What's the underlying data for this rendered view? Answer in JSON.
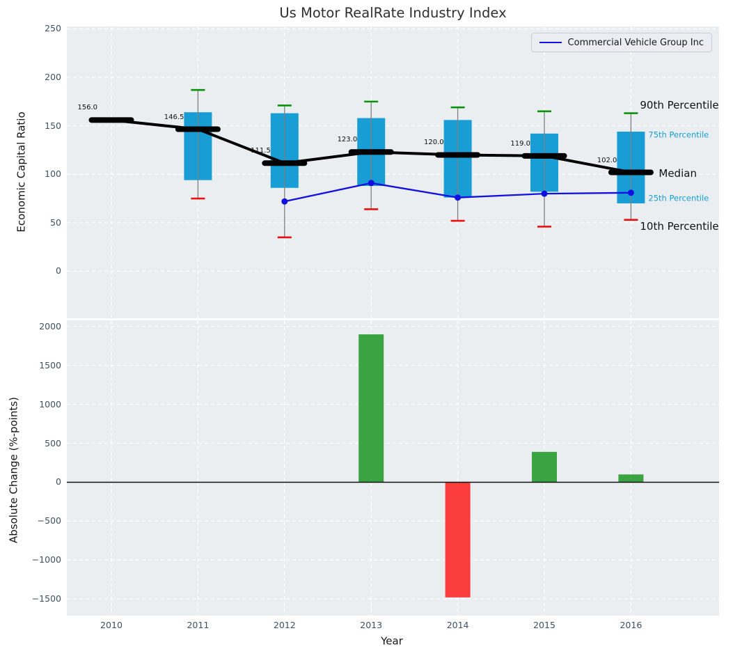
{
  "title": "Us Motor RealRate Industry Index",
  "colors": {
    "panel_bg": "#eaeef0",
    "grid_line": "#ffffff",
    "tick_text": "#3c4f63",
    "box_fill": "#189dd4",
    "whisker": "#808080",
    "cap_high": "#0a930a",
    "cap_low": "#ea1010",
    "median_line": "#000000",
    "company_line": "#1010e0",
    "bar_positive": "#3ba342",
    "bar_negative": "#fb3c3c",
    "percentile_text_small": "#159fd4",
    "percentile_text_big": "#111111",
    "zero_line": "#111111"
  },
  "chart_data": [
    {
      "type": "box",
      "title": "Us Motor RealRate Industry Index",
      "ylabel": "Economic Capital Ratio",
      "yticks": [
        0,
        50,
        100,
        150,
        200,
        250
      ],
      "ylim": [
        -48.5,
        252.5
      ],
      "grid": true,
      "legend": {
        "position": "upper right",
        "entries": [
          {
            "label": "Commercial Vehicle Group Inc",
            "color": "#1010e0"
          }
        ]
      },
      "years": [
        2010,
        2011,
        2012,
        2013,
        2014,
        2015,
        2016
      ],
      "boxes": [
        {
          "year": 2010,
          "median": 156.0,
          "label": "156.0"
        },
        {
          "year": 2011,
          "p10": 75,
          "p25": 94,
          "median": 146.5,
          "p75": 164,
          "p90": 187,
          "label": "146.5"
        },
        {
          "year": 2012,
          "p10": 35,
          "p25": 86,
          "median": 111.5,
          "p75": 163,
          "p90": 171,
          "label": "111.5"
        },
        {
          "year": 2013,
          "p10": 64,
          "p25": 88,
          "median": 123.0,
          "p75": 158,
          "p90": 175,
          "label": "123.0"
        },
        {
          "year": 2014,
          "p10": 52,
          "p25": 76,
          "median": 120.0,
          "p75": 156,
          "p90": 169,
          "label": "120.0"
        },
        {
          "year": 2015,
          "p10": 46,
          "p25": 82,
          "median": 119.0,
          "p75": 142,
          "p90": 165,
          "label": "119.0"
        },
        {
          "year": 2016,
          "p10": 53,
          "p25": 70,
          "median": 102.0,
          "p75": 144,
          "p90": 163,
          "label": "102.0"
        }
      ],
      "series": [
        {
          "name": "Commercial Vehicle Group Inc",
          "x": [
            2012,
            2013,
            2014,
            2015,
            2016
          ],
          "values": [
            72,
            91,
            76,
            80,
            81
          ]
        }
      ],
      "percentile_labels": {
        "p90": "90th Percentile",
        "p75": "75th Percentile",
        "median": "Median",
        "p25": "25th Percentile",
        "p10": "10th Percentile"
      }
    },
    {
      "type": "bar",
      "ylabel": "Absolute Change (%-points)",
      "xlabel": "Year",
      "yticks": [
        2000,
        1500,
        1000,
        500,
        0,
        -500,
        -1000,
        -1500
      ],
      "ylim": [
        -1714,
        2080
      ],
      "grid": true,
      "categories": [
        2010,
        2011,
        2012,
        2013,
        2014,
        2015,
        2016
      ],
      "values": [
        null,
        null,
        null,
        1900,
        -1480,
        390,
        100
      ]
    }
  ]
}
